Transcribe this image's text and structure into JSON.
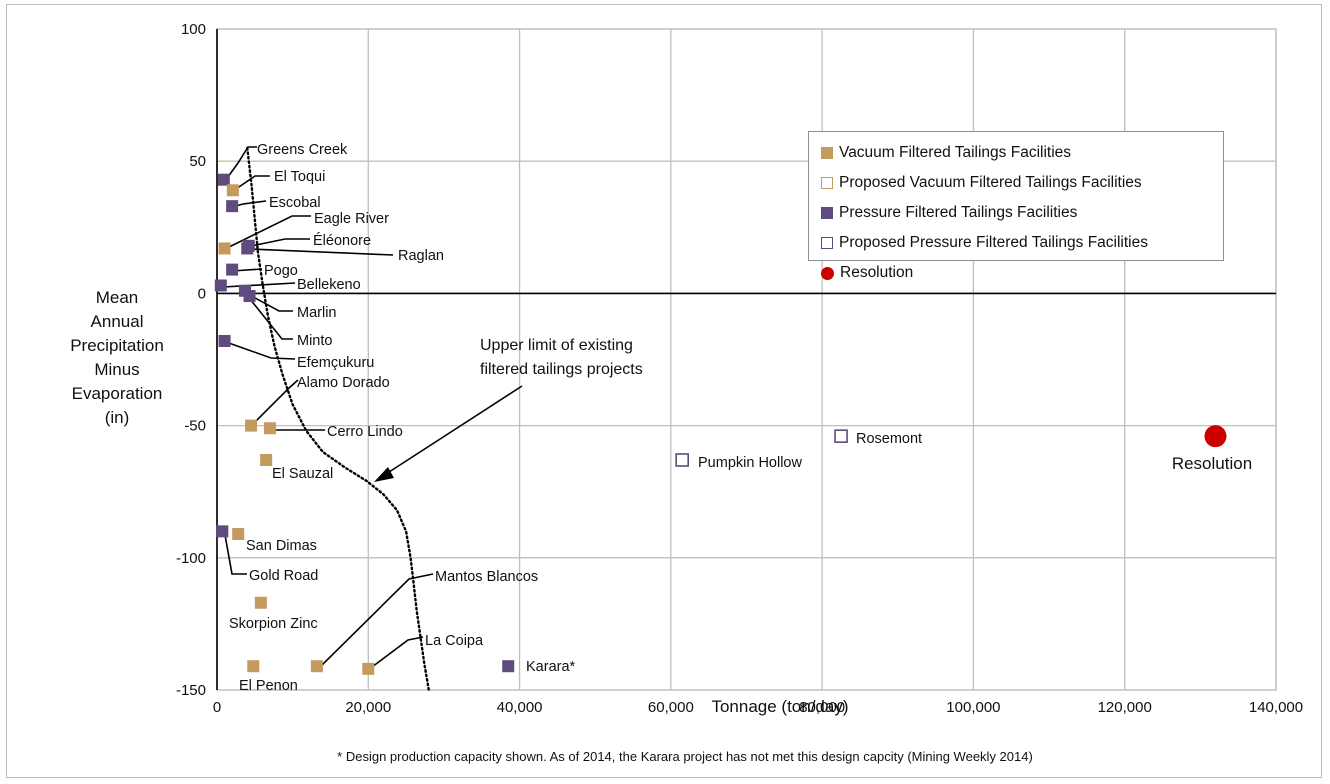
{
  "chart_data": {
    "type": "scatter",
    "xlabel": "Tonnage (ton/day)",
    "ylabel": [
      "Mean",
      "Annual",
      "Precipitation",
      "Minus",
      "Evaporation",
      "(in)"
    ],
    "xlim": [
      0,
      140000
    ],
    "ylim": [
      -150,
      100
    ],
    "x_ticks": [
      0,
      20000,
      40000,
      60000,
      80000,
      100000,
      120000,
      140000
    ],
    "x_tick_labels": [
      "0",
      "20,000",
      "40,000",
      "60,000",
      "80,000",
      "100,000",
      "120,000",
      "140,000"
    ],
    "y_ticks": [
      -150,
      -100,
      -50,
      0,
      50,
      100
    ],
    "y_tick_labels": [
      "-150",
      "-100",
      "-50",
      "0",
      "50",
      "100"
    ],
    "grid": true,
    "legend_position": "top-right",
    "series": [
      {
        "name": "Vacuum Filtered Tailings Facilities",
        "marker": "square-filled",
        "color": "#c49a5e"
      },
      {
        "name": "Proposed Vacuum Filtered Tailings Facilities",
        "marker": "square-open",
        "color": "#c49a5e"
      },
      {
        "name": "Pressure Filtered Tailings Facilities",
        "marker": "square-filled",
        "color": "#5f4b7e"
      },
      {
        "name": "Proposed Pressure Filtered Tailings Facilities",
        "marker": "square-open",
        "color": "#5f4b7e"
      },
      {
        "name": "Resolution",
        "marker": "circle-filled",
        "color": "#cc0000"
      }
    ],
    "points": [
      {
        "label": "Greens Creek",
        "x": 900,
        "y": 43,
        "series": 2
      },
      {
        "label": "El Toqui",
        "x": 2100,
        "y": 39,
        "series": 0
      },
      {
        "label": "Escobal",
        "x": 2000,
        "y": 33,
        "series": 2
      },
      {
        "label": "Eagle River",
        "x": 1000,
        "y": 17,
        "series": 0
      },
      {
        "label": "Éléonore",
        "x": 4200,
        "y": 18,
        "series": 2
      },
      {
        "label": "Raglan",
        "x": 4000,
        "y": 17,
        "series": 2
      },
      {
        "label": "Pogo",
        "x": 2000,
        "y": 9,
        "series": 2
      },
      {
        "label": "Bellekeno",
        "x": 500,
        "y": 3,
        "series": 2
      },
      {
        "label": "Marlin",
        "x": 3700,
        "y": 1,
        "series": 2
      },
      {
        "label": "Minto",
        "x": 4300,
        "y": -1,
        "series": 2
      },
      {
        "label": "Efemçukuru",
        "x": 1000,
        "y": -18,
        "series": 2
      },
      {
        "label": "Alamo Dorado",
        "x": 4500,
        "y": -50,
        "series": 0
      },
      {
        "label": "Cerro Lindo",
        "x": 7000,
        "y": -51,
        "series": 0
      },
      {
        "label": "El Sauzal",
        "x": 6500,
        "y": -63,
        "series": 0
      },
      {
        "label": "San Dimas",
        "x": 2800,
        "y": -91,
        "series": 0
      },
      {
        "label": "Gold Road",
        "x": 700,
        "y": -90,
        "series": 2
      },
      {
        "label": "Skorpion Zinc",
        "x": 5800,
        "y": -117,
        "series": 0
      },
      {
        "label": "El Penon",
        "x": 4800,
        "y": -141,
        "series": 0
      },
      {
        "label": "Mantos Blancos",
        "x": 13200,
        "y": -141,
        "series": 0
      },
      {
        "label": "La Coipa",
        "x": 20000,
        "y": -142,
        "series": 0
      },
      {
        "label": "Karara*",
        "x": 38500,
        "y": -141,
        "series": 2
      },
      {
        "label": "Pumpkin Hollow",
        "x": 61500,
        "y": -63,
        "series": 3
      },
      {
        "label": "Rosemont",
        "x": 82500,
        "y": -54,
        "series": 3
      },
      {
        "label": "Resolution",
        "x": 132000,
        "y": -54,
        "series": 4
      }
    ],
    "upper_limit_curve": [
      [
        4000,
        55
      ],
      [
        4600,
        40
      ],
      [
        5000,
        28
      ],
      [
        5400,
        16
      ],
      [
        6000,
        4
      ],
      [
        6700,
        -8
      ],
      [
        7600,
        -20
      ],
      [
        8700,
        -31
      ],
      [
        10000,
        -42
      ],
      [
        11800,
        -52
      ],
      [
        14000,
        -60
      ],
      [
        17000,
        -66
      ],
      [
        19800,
        -71
      ],
      [
        22000,
        -76
      ],
      [
        23800,
        -82
      ],
      [
        25000,
        -90
      ],
      [
        25600,
        -100
      ],
      [
        26000,
        -110
      ],
      [
        26400,
        -120
      ],
      [
        26900,
        -130
      ],
      [
        27400,
        -140
      ],
      [
        28000,
        -150
      ]
    ],
    "annotation": {
      "text": [
        "Upper limit of existing",
        "filtered tailings projects"
      ]
    }
  },
  "footnote": "* Design production capacity shown. As of 2014, the Karara project has not met this design capcity (Mining Weekly 2014)"
}
